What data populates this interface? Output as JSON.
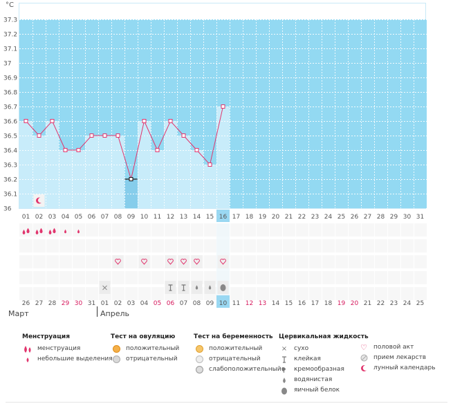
{
  "chart_data": {
    "type": "line",
    "title": "",
    "ylabel": "°C",
    "ylim": [
      36,
      37.3
    ],
    "y_ticks": [
      "36",
      "36.1",
      "36.2",
      "36.3",
      "36.4",
      "36.5",
      "36.6",
      "36.7",
      "36.8",
      "36.9",
      "37",
      "37.1",
      "37.2",
      "37.3"
    ],
    "cycle_days": [
      "01",
      "02",
      "03",
      "04",
      "05",
      "06",
      "07",
      "08",
      "09",
      "10",
      "11",
      "12",
      "13",
      "14",
      "15",
      "16",
      "17",
      "18",
      "19",
      "20",
      "21",
      "22",
      "23",
      "24",
      "25",
      "26",
      "27",
      "28",
      "29",
      "30",
      "31"
    ],
    "highlight_day_index": 15,
    "series": [
      {
        "name": "temperature",
        "values": [
          36.6,
          36.5,
          36.6,
          36.4,
          36.4,
          36.5,
          36.5,
          36.5,
          36.2,
          36.6,
          36.4,
          36.6,
          36.5,
          36.4,
          36.3,
          36.7
        ]
      }
    ],
    "calendar_dates": [
      "26",
      "27",
      "28",
      "29",
      "30",
      "31",
      "01",
      "02",
      "03",
      "04",
      "05",
      "06",
      "07",
      "08",
      "09",
      "10",
      "11",
      "12",
      "13",
      "14",
      "15",
      "16",
      "17",
      "18",
      "19",
      "20",
      "21",
      "22",
      "23",
      "24",
      "25"
    ],
    "red_date_indices": [
      3,
      4,
      10,
      11,
      17,
      18,
      24,
      25
    ],
    "months": {
      "first": "Март",
      "second": "Апрель"
    },
    "markers": {
      "menstruation": {
        "heavy": [
          0,
          1,
          2
        ],
        "light": [
          3,
          4
        ]
      },
      "moon": [
        1
      ],
      "intercourse": [
        7,
        9,
        11,
        12,
        13,
        15
      ],
      "cervical": {
        "dry": [
          6
        ],
        "sticky": [
          11,
          12
        ],
        "watery": [
          13,
          14
        ],
        "eggwhite": [
          15
        ]
      }
    },
    "colors": {
      "background": "#93d9f2",
      "bar": "#c8ecfa",
      "bar_dark": "#86cdeb",
      "line": "#e1356d",
      "grid": "#ffffff",
      "axis_text": "#555555",
      "weekend": "#d6195d",
      "highlight": "#9ad8f2"
    }
  },
  "legend": {
    "menstruation": {
      "title": "Менструация",
      "items": [
        "менструация",
        "небольшие выделения"
      ]
    },
    "ovulation": {
      "title": "Тест на овуляцию",
      "items": [
        "положительный",
        "отрицательный"
      ]
    },
    "pregnancy": {
      "title": "Тест на беременность",
      "items": [
        "положительный",
        "отрицательный",
        "слабоположительный"
      ]
    },
    "cervical": {
      "title": "Цервикальная жидкость",
      "items": [
        "сухо",
        "клейкая",
        "кремообразная",
        "водянистая",
        "яичный белок"
      ]
    },
    "other": {
      "items": [
        "половой акт",
        "прием лекарств",
        "лунный календарь"
      ]
    }
  }
}
